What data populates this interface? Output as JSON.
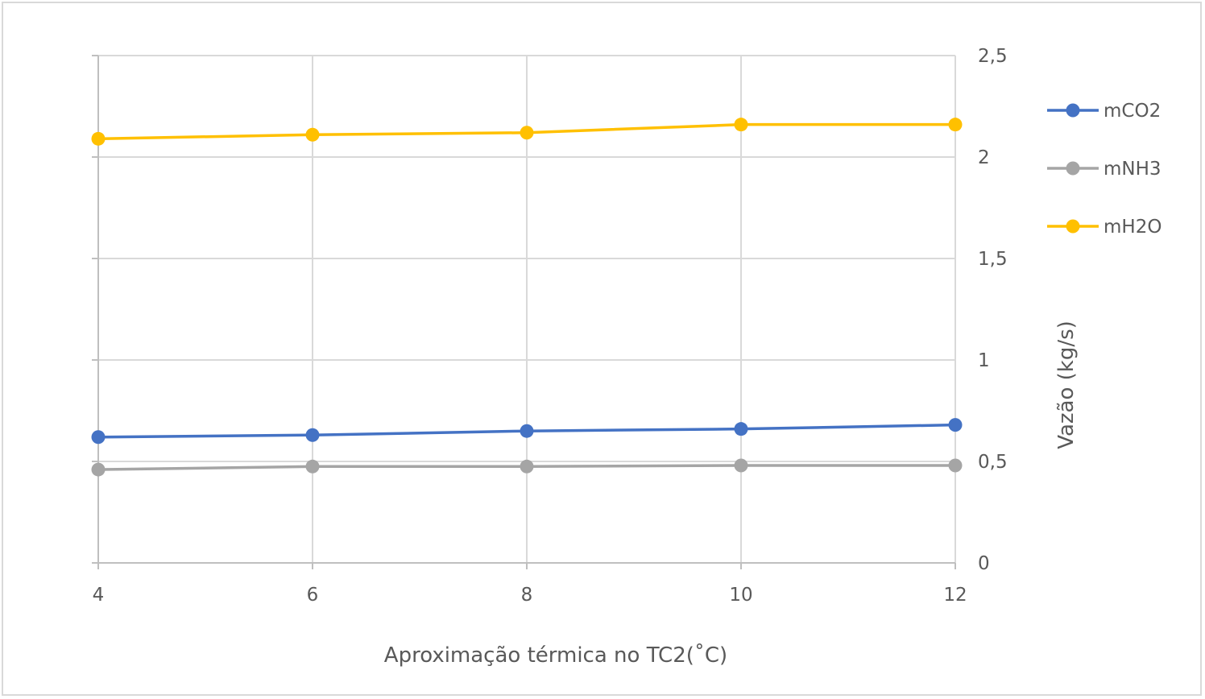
{
  "chart_data": {
    "type": "line",
    "title": "",
    "xlabel": "Aproximação térmica no TC2(˚C)",
    "ylabel": "Vazão (kg/s)",
    "x": [
      4,
      6,
      8,
      10,
      12
    ],
    "xticks": [
      "4",
      "6",
      "8",
      "10",
      "12"
    ],
    "ylim": [
      0,
      2.5
    ],
    "yticks": [
      {
        "value": 0,
        "label": "0"
      },
      {
        "value": 0.5,
        "label": "0,5"
      },
      {
        "value": 1,
        "label": "1"
      },
      {
        "value": 1.5,
        "label": "1,5"
      },
      {
        "value": 2,
        "label": "2"
      },
      {
        "value": 2.5,
        "label": "2,5"
      }
    ],
    "grid": true,
    "y_axis_position": "right",
    "legend_position": "right",
    "series": [
      {
        "name": "mCO2",
        "color": "#4472c4",
        "values": [
          0.62,
          0.63,
          0.65,
          0.66,
          0.68
        ]
      },
      {
        "name": "mNH3",
        "color": "#a5a5a5",
        "values": [
          0.46,
          0.475,
          0.475,
          0.48,
          0.48
        ]
      },
      {
        "name": "mH2O",
        "color": "#ffc000",
        "values": [
          2.09,
          2.11,
          2.12,
          2.16,
          2.16
        ]
      }
    ]
  }
}
